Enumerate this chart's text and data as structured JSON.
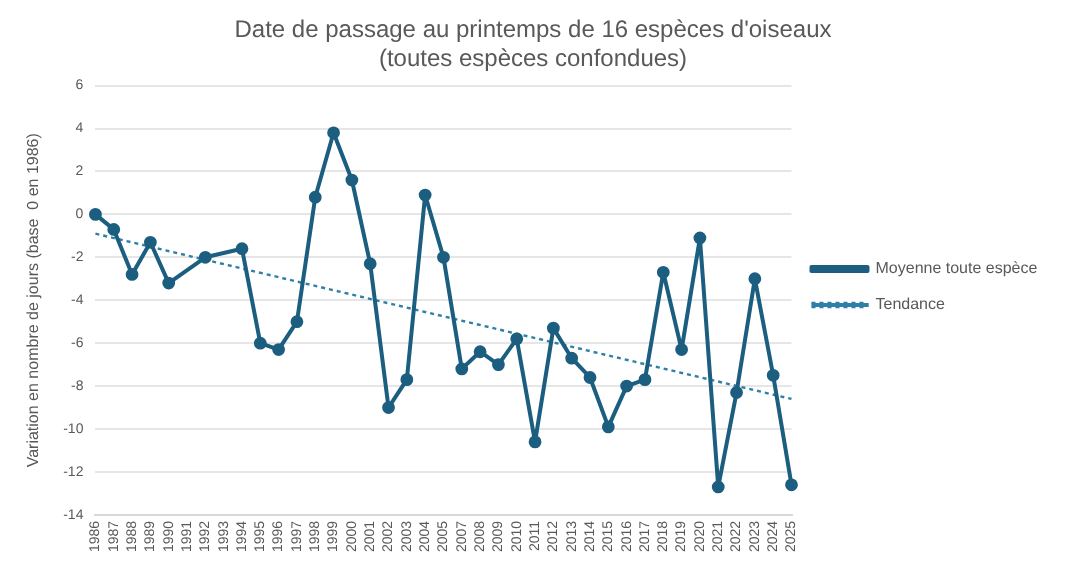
{
  "chart_data": {
    "type": "line",
    "title": "Date de passage au printemps de 16 espèces d'oiseaux\n(toutes espèces confondues)",
    "ylabel": "Variation en nombre de jours (base  0 en 1986)",
    "categories": [
      "1986",
      "1987",
      "1988",
      "1989",
      "1990",
      "1991",
      "1992",
      "1993",
      "1994",
      "1995",
      "1996",
      "1997",
      "1998",
      "1999",
      "2000",
      "2001",
      "2002",
      "2003",
      "2004",
      "2005",
      "2007",
      "2008",
      "2009",
      "2010",
      "2011",
      "2012",
      "2013",
      "2014",
      "2015",
      "2016",
      "2017",
      "2018",
      "2019",
      "2020",
      "2021",
      "2022",
      "2023",
      "2024",
      "2025"
    ],
    "series": [
      {
        "name": "Moyenne toute espèce",
        "color": "#1b5e80",
        "marker": "circle",
        "line_style": "solid",
        "values": [
          0,
          -0.7,
          -2.8,
          -1.3,
          -3.2,
          null,
          -2.0,
          null,
          -1.6,
          -6.0,
          -6.3,
          -5.0,
          0.8,
          3.8,
          1.6,
          -2.3,
          -9.0,
          -7.7,
          0.9,
          -2.0,
          -7.2,
          -6.4,
          -7.0,
          -5.8,
          -10.6,
          -5.3,
          -6.7,
          -7.6,
          -9.9,
          -8.0,
          -7.7,
          -2.7,
          -6.3,
          -1.1,
          -12.7,
          -8.3,
          -3.0,
          -7.5,
          -12.6
        ]
      },
      {
        "name": "Tendance",
        "color": "#2f7fa8",
        "marker": "none",
        "line_style": "dotted",
        "values": [
          -0.9,
          null,
          null,
          null,
          null,
          null,
          null,
          null,
          null,
          null,
          null,
          null,
          null,
          null,
          null,
          null,
          null,
          null,
          null,
          null,
          null,
          null,
          null,
          null,
          null,
          null,
          null,
          null,
          null,
          null,
          null,
          null,
          null,
          null,
          null,
          null,
          null,
          null,
          -8.6
        ]
      }
    ],
    "ylim": [
      -14,
      6
    ],
    "yticks": [
      -14,
      -12,
      -10,
      -8,
      -6,
      -4,
      -2,
      0,
      2,
      4,
      6
    ],
    "grid": "y",
    "legend": "right"
  }
}
